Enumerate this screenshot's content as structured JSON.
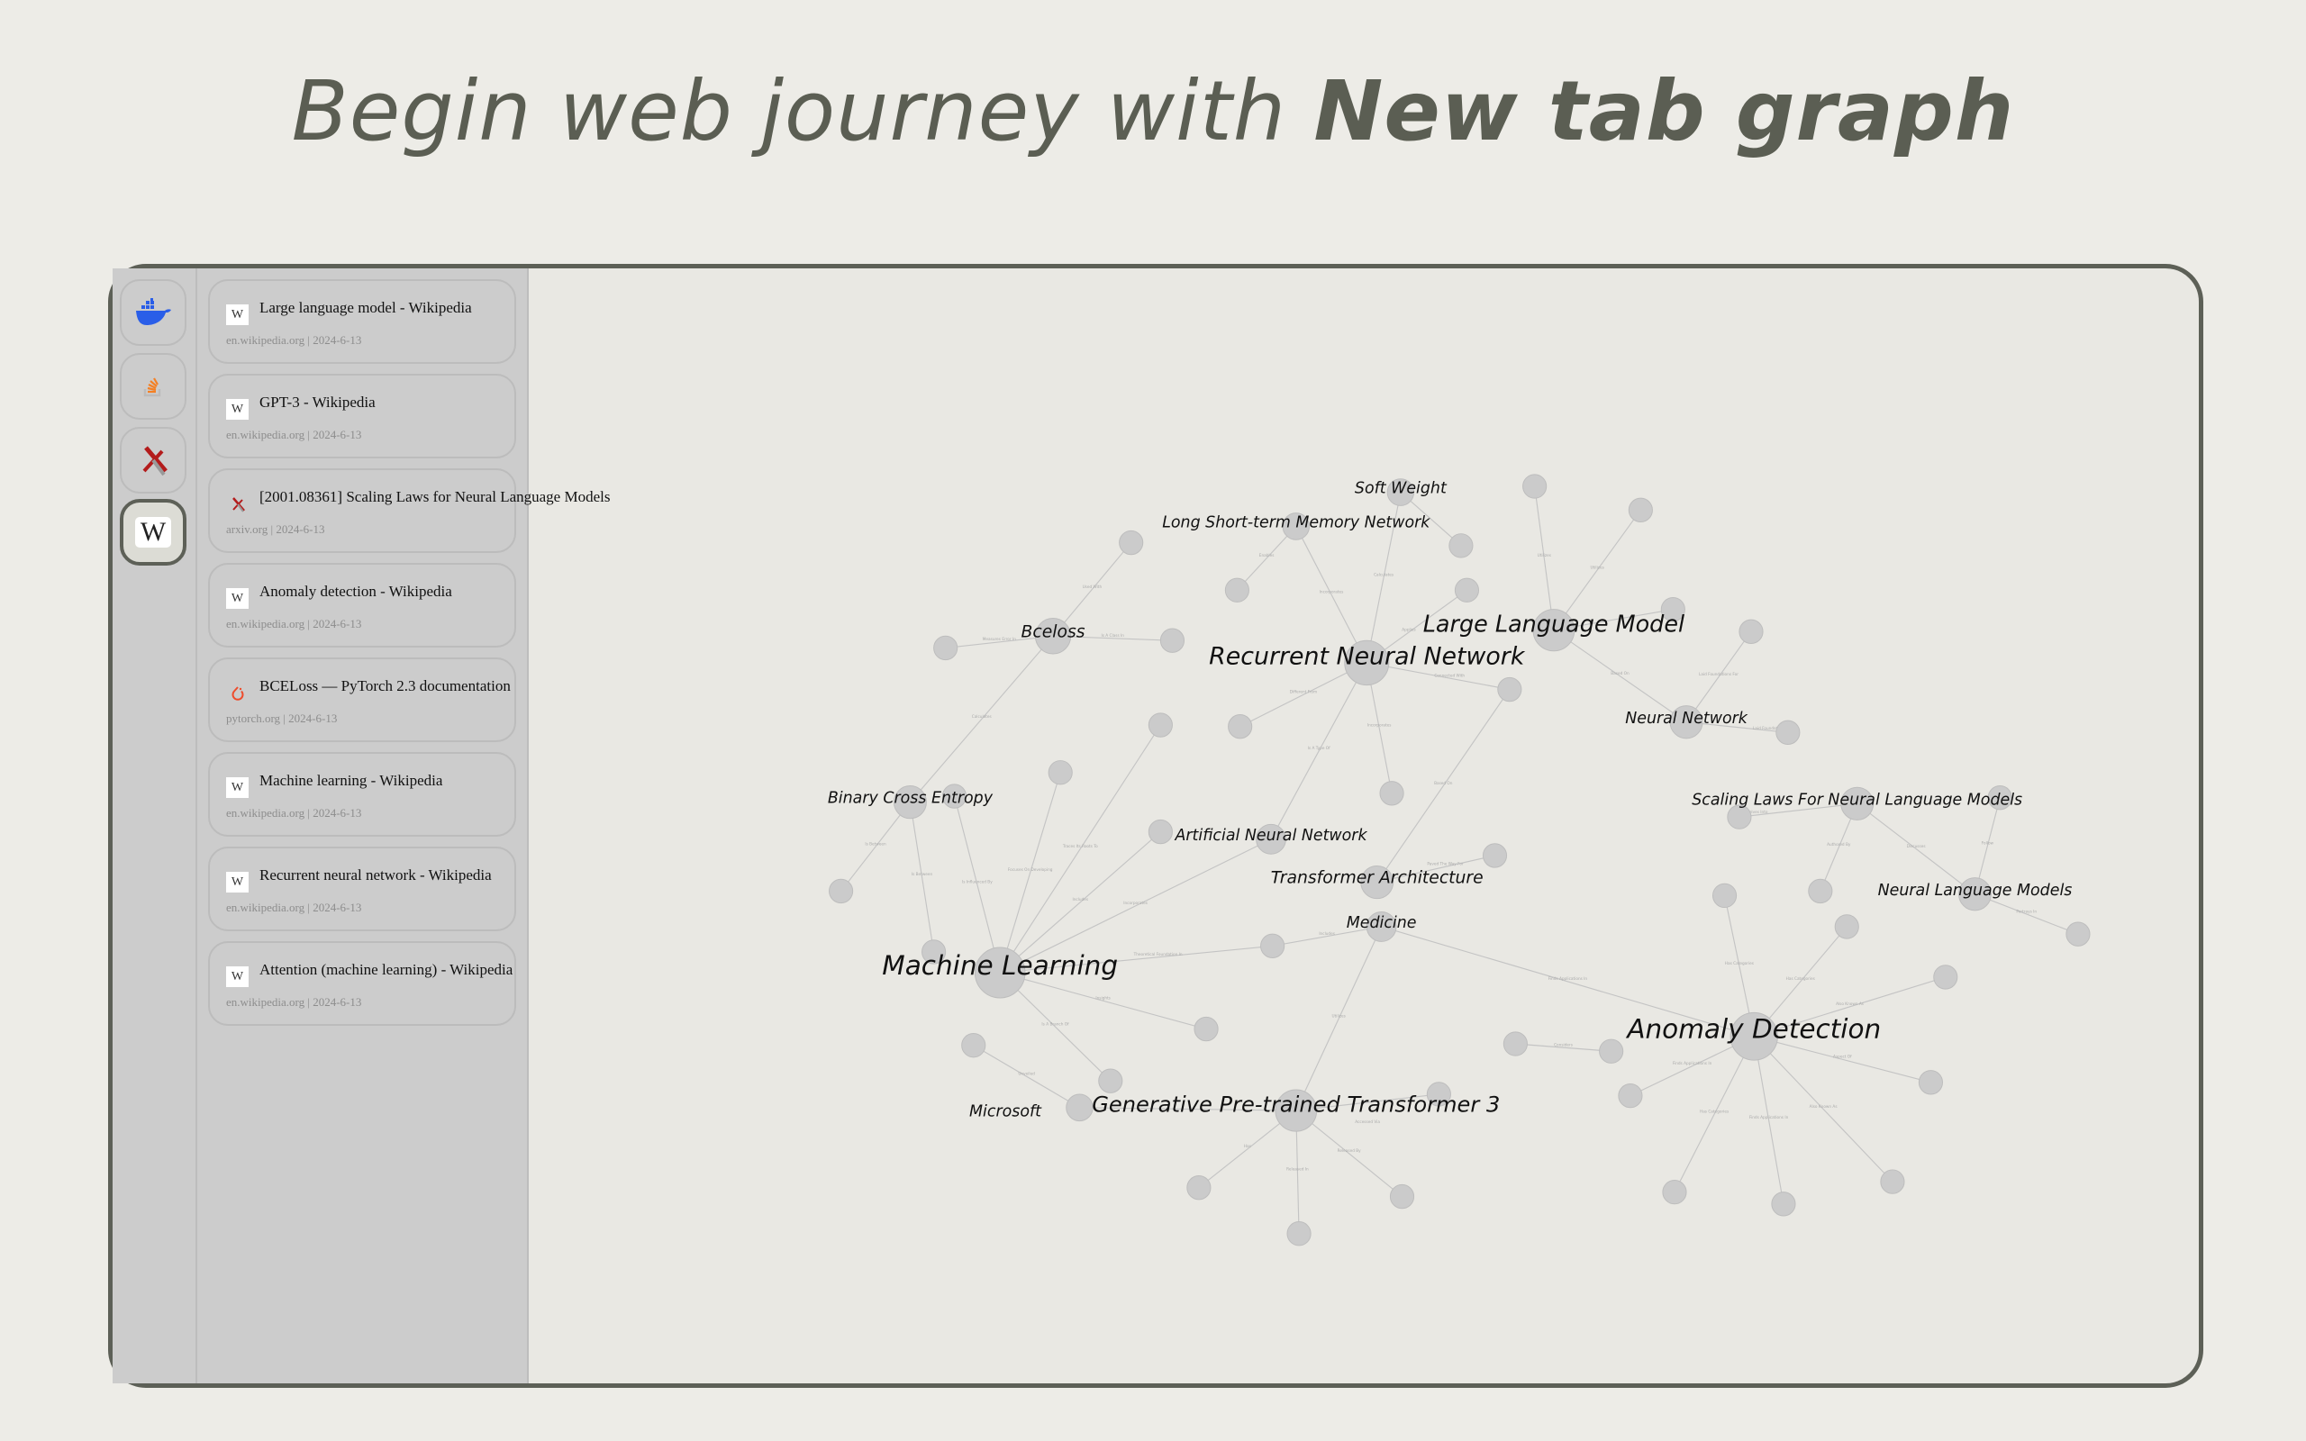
{
  "headline": {
    "prefix": "Begin web journey with ",
    "bold": "New tab graph"
  },
  "icon_rail": [
    {
      "icon": "docker-icon",
      "color": "#2a5ee8"
    },
    {
      "icon": "stackoverflow-icon",
      "color": "#f48024"
    },
    {
      "icon": "arxiv-icon",
      "color": "#b31b1b"
    },
    {
      "icon": "wikipedia-icon",
      "active": true
    }
  ],
  "history": [
    {
      "favicon": "wikipedia-icon",
      "title": "Large language model - Wikipedia",
      "meta": "en.wikipedia.org | 2024-6-13"
    },
    {
      "favicon": "wikipedia-icon",
      "title": "GPT-3 - Wikipedia",
      "meta": "en.wikipedia.org | 2024-6-13"
    },
    {
      "favicon": "arxiv-icon",
      "title": "[2001.08361] Scaling Laws for Neural Language Models",
      "meta": "arxiv.org | 2024-6-13"
    },
    {
      "favicon": "wikipedia-icon",
      "title": "Anomaly detection - Wikipedia",
      "meta": "en.wikipedia.org | 2024-6-13"
    },
    {
      "favicon": "pytorch-icon",
      "title": "BCELoss — PyTorch 2.3 documentation",
      "meta": "pytorch.org | 2024-6-13"
    },
    {
      "favicon": "wikipedia-icon",
      "title": "Machine learning - Wikipedia",
      "meta": "en.wikipedia.org | 2024-6-13"
    },
    {
      "favicon": "wikipedia-icon",
      "title": "Recurrent neural network - Wikipedia",
      "meta": "en.wikipedia.org | 2024-6-13"
    },
    {
      "favicon": "wikipedia-icon",
      "title": "Attention (machine learning) - Wikipedia",
      "meta": "en.wikipedia.org | 2024-6-13"
    }
  ],
  "graph": {
    "node_color": "#cbcbcb",
    "edge_color": "#c4c4c4",
    "nodes": [
      {
        "id": "ML",
        "label": "Machine Learning"
      },
      {
        "id": "RNN",
        "label": "Recurrent Neural Network"
      },
      {
        "id": "LLM",
        "label": "Large Language Model"
      },
      {
        "id": "AD",
        "label": "Anomaly Detection"
      },
      {
        "id": "GPT3",
        "label": "Generative Pre-trained Transformer 3"
      },
      {
        "id": "BCEL",
        "label": "Bceloss"
      },
      {
        "id": "BCE",
        "label": "Binary Cross Entropy"
      },
      {
        "id": "LSTM",
        "label": "Long Short-term Memory Network"
      },
      {
        "id": "SW",
        "label": "Soft Weight"
      },
      {
        "id": "NN",
        "label": "Neural Network"
      },
      {
        "id": "SL",
        "label": "Scaling Laws For Neural Language Models"
      },
      {
        "id": "NLM",
        "label": "Neural Language Models"
      },
      {
        "id": "ANN",
        "label": "Artificial Neural Network"
      },
      {
        "id": "TA",
        "label": "Transformer Architecture"
      },
      {
        "id": "MED",
        "label": "Medicine"
      },
      {
        "id": "MS",
        "label": "Microsoft"
      }
    ],
    "edges": [
      [
        "LSTM",
        "a2",
        "Enables"
      ],
      [
        "LSTM",
        "RNN",
        "Incorporates"
      ],
      [
        "SW",
        "RNN",
        "Calculates"
      ],
      [
        "SW",
        "a3",
        ""
      ],
      [
        "RNN",
        "a4",
        "Applies"
      ],
      [
        "RNN",
        "a10",
        "Connected With"
      ],
      [
        "RNN",
        "a13",
        "Different From"
      ],
      [
        "RNN",
        "a14",
        "Incorporates"
      ],
      [
        "RNN",
        "ANN",
        "Is A Type Of"
      ],
      [
        "a10",
        "TA",
        "Based On"
      ],
      [
        "LLM",
        "a5",
        "Utilizes"
      ],
      [
        "LLM",
        "a6",
        "Utilizes"
      ],
      [
        "LLM",
        "a7",
        ""
      ],
      [
        "LLM",
        "NN",
        "Based On"
      ],
      [
        "NN",
        "a8",
        "Laid Foundations For"
      ],
      [
        "NN",
        "a9",
        "Laid Foundations For"
      ],
      [
        "BCEL",
        "a1",
        "Used With"
      ],
      [
        "BCEL",
        "a11",
        "Measures Error In"
      ],
      [
        "BCEL",
        "a12",
        "Is A Class In"
      ],
      [
        "BCEL",
        "BCE",
        "Calculates"
      ],
      [
        "BCE",
        "a18",
        "Is Between"
      ],
      [
        "BCE",
        "a19",
        "Is Between"
      ],
      [
        "ML",
        "a17",
        "Is Influenced By"
      ],
      [
        "ML",
        "a16",
        "Focuses On Developing"
      ],
      [
        "ML",
        "a15",
        "Traces Its Roots To"
      ],
      [
        "ML",
        "a20",
        "Includes"
      ],
      [
        "ML",
        "ANN",
        "Incorporates"
      ],
      [
        "ML",
        "a22",
        "Theoretical Foundation In"
      ],
      [
        "a22",
        "MED",
        "Includes"
      ],
      [
        "ML",
        "a23",
        "Insights"
      ],
      [
        "ML",
        "a25",
        "Is A Branch Of"
      ],
      [
        "a24",
        "MS",
        "Unveiled"
      ],
      [
        "MED",
        "GPT3",
        "Utilizes"
      ],
      [
        "MED",
        "AD",
        "Finds Applications In"
      ],
      [
        "TA",
        "a21",
        "Paved The Way For"
      ],
      [
        "GPT3",
        "MS",
        ""
      ],
      [
        "GPT3",
        "a43",
        "Accessed Via"
      ],
      [
        "GPT3",
        "a40",
        "Has"
      ],
      [
        "GPT3",
        "a41",
        "Released In"
      ],
      [
        "GPT3",
        "a42",
        "Released By"
      ],
      [
        "SL",
        "a26",
        "Delves Into"
      ],
      [
        "SL",
        "a28",
        "Authored By"
      ],
      [
        "SL",
        "NLM",
        "Discusses"
      ],
      [
        "NLM",
        "a27",
        "Follow"
      ],
      [
        "NLM",
        "a29",
        "Portrays In"
      ],
      [
        "a30",
        "AD",
        "Has Categories"
      ],
      [
        "AD",
        "a31",
        "Has Categories"
      ],
      [
        "AD",
        "a32",
        "Also Known As"
      ],
      [
        "a33",
        "a34",
        "Considers"
      ],
      [
        "AD",
        "a35",
        "Finds Applications In"
      ],
      [
        "AD",
        "a36",
        "Aspect Of"
      ],
      [
        "AD",
        "a39",
        "Has Categories"
      ],
      [
        "AD",
        "a38",
        "Finds Applications In"
      ],
      [
        "AD",
        "a37",
        "Also Known As"
      ]
    ]
  }
}
